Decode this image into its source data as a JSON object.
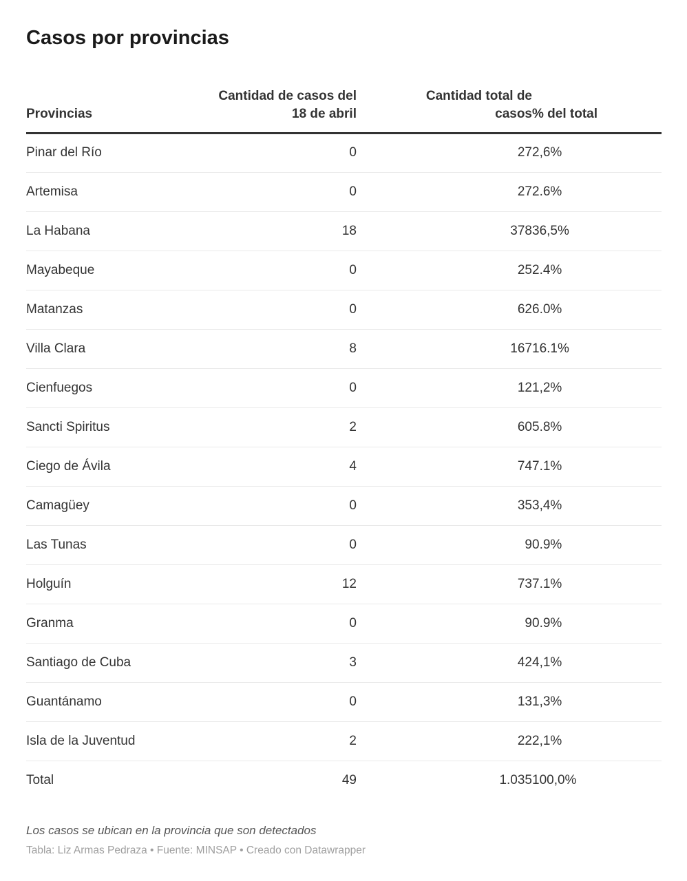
{
  "page": {
    "title": "Casos por provincias"
  },
  "colors": {
    "title_text": "#1a1a1a",
    "body_text": "#333333",
    "header_rule": "#333333",
    "row_divider": "#e9e9e9",
    "note_text": "#555555",
    "credit_text": "#9e9e9e",
    "background": "#ffffff"
  },
  "table": {
    "columns": [
      {
        "id": "province",
        "label_lines": [
          "Provincias"
        ],
        "align": "left"
      },
      {
        "id": "new_cases",
        "label_lines": [
          "Cantidad de casos del",
          "18 de abril"
        ],
        "align": "right"
      },
      {
        "id": "total_cases",
        "label_lines": [
          "Cantidad total de",
          "casos"
        ],
        "align": "right"
      },
      {
        "id": "pct_total",
        "label_lines": [
          "% del total"
        ],
        "align": "left"
      }
    ],
    "rows": [
      {
        "province": "Pinar del Río",
        "new_cases": "0",
        "total_cases": "27",
        "pct_total": "2,6%"
      },
      {
        "province": "Artemisa",
        "new_cases": "0",
        "total_cases": "27",
        "pct_total": "2.6%"
      },
      {
        "province": "La Habana",
        "new_cases": "18",
        "total_cases": "378",
        "pct_total": "36,5%"
      },
      {
        "province": "Mayabeque",
        "new_cases": "0",
        "total_cases": "25",
        "pct_total": "2.4%"
      },
      {
        "province": "Matanzas",
        "new_cases": "0",
        "total_cases": "62",
        "pct_total": "6.0%"
      },
      {
        "province": "Villa Clara",
        "new_cases": "8",
        "total_cases": "167",
        "pct_total": "16.1%"
      },
      {
        "province": "Cienfuegos",
        "new_cases": "0",
        "total_cases": "12",
        "pct_total": "1,2%"
      },
      {
        "province": "Sancti Spiritus",
        "new_cases": "2",
        "total_cases": "60",
        "pct_total": "5.8%"
      },
      {
        "province": "Ciego de Ávila",
        "new_cases": "4",
        "total_cases": "74",
        "pct_total": "7.1%"
      },
      {
        "province": "Camagüey",
        "new_cases": "0",
        "total_cases": "35",
        "pct_total": "3,4%"
      },
      {
        "province": "Las Tunas",
        "new_cases": "0",
        "total_cases": "9",
        "pct_total": "0.9%"
      },
      {
        "province": "Holguín",
        "new_cases": "12",
        "total_cases": "73",
        "pct_total": "7.1%"
      },
      {
        "province": "Granma",
        "new_cases": "0",
        "total_cases": "9",
        "pct_total": "0.9%"
      },
      {
        "province": "Santiago de Cuba",
        "new_cases": "3",
        "total_cases": "42",
        "pct_total": "4,1%"
      },
      {
        "province": "Guantánamo",
        "new_cases": "0",
        "total_cases": "13",
        "pct_total": "1,3%"
      },
      {
        "province": "Isla de la Juventud",
        "new_cases": "2",
        "total_cases": "22",
        "pct_total": "2,1%"
      }
    ],
    "total_row": {
      "province": "Total",
      "new_cases": "49",
      "total_cases": "1.035",
      "pct_total": "100,0%"
    }
  },
  "footer": {
    "note": "Los casos se ubican en la provincia que son detectados",
    "credit": "Tabla: Liz Armas Pedraza • Fuente: MINSAP • Creado con Datawrapper"
  },
  "chart_data": {
    "type": "table",
    "title": "Casos por provincias",
    "columns": [
      "Provincias",
      "Cantidad de casos del 18 de abril",
      "Cantidad total de casos",
      "% del total"
    ],
    "rows": [
      {
        "provincia": "Pinar del Río",
        "casos_18_abril": 0,
        "casos_totales": 27,
        "pct_del_total": "2,6%"
      },
      {
        "provincia": "Artemisa",
        "casos_18_abril": 0,
        "casos_totales": 27,
        "pct_del_total": "2.6%"
      },
      {
        "provincia": "La Habana",
        "casos_18_abril": 18,
        "casos_totales": 378,
        "pct_del_total": "36,5%"
      },
      {
        "provincia": "Mayabeque",
        "casos_18_abril": 0,
        "casos_totales": 25,
        "pct_del_total": "2.4%"
      },
      {
        "provincia": "Matanzas",
        "casos_18_abril": 0,
        "casos_totales": 62,
        "pct_del_total": "6.0%"
      },
      {
        "provincia": "Villa Clara",
        "casos_18_abril": 8,
        "casos_totales": 167,
        "pct_del_total": "16.1%"
      },
      {
        "provincia": "Cienfuegos",
        "casos_18_abril": 0,
        "casos_totales": 12,
        "pct_del_total": "1,2%"
      },
      {
        "provincia": "Sancti Spiritus",
        "casos_18_abril": 2,
        "casos_totales": 60,
        "pct_del_total": "5.8%"
      },
      {
        "provincia": "Ciego de Ávila",
        "casos_18_abril": 4,
        "casos_totales": 74,
        "pct_del_total": "7.1%"
      },
      {
        "provincia": "Camagüey",
        "casos_18_abril": 0,
        "casos_totales": 35,
        "pct_del_total": "3,4%"
      },
      {
        "provincia": "Las Tunas",
        "casos_18_abril": 0,
        "casos_totales": 9,
        "pct_del_total": "0.9%"
      },
      {
        "provincia": "Holguín",
        "casos_18_abril": 12,
        "casos_totales": 73,
        "pct_del_total": "7.1%"
      },
      {
        "provincia": "Granma",
        "casos_18_abril": 0,
        "casos_totales": 9,
        "pct_del_total": "0.9%"
      },
      {
        "provincia": "Santiago de Cuba",
        "casos_18_abril": 3,
        "casos_totales": 42,
        "pct_del_total": "4,1%"
      },
      {
        "provincia": "Guantánamo",
        "casos_18_abril": 0,
        "casos_totales": 13,
        "pct_del_total": "1,3%"
      },
      {
        "provincia": "Isla de la Juventud",
        "casos_18_abril": 2,
        "casos_totales": 22,
        "pct_del_total": "2,1%"
      },
      {
        "provincia": "Total",
        "casos_18_abril": 49,
        "casos_totales": 1035,
        "pct_del_total": "100,0%"
      }
    ],
    "note": "Los casos se ubican en la provincia que son detectados",
    "credit": "Tabla: Liz Armas Pedraza • Fuente: MINSAP • Creado con Datawrapper"
  }
}
